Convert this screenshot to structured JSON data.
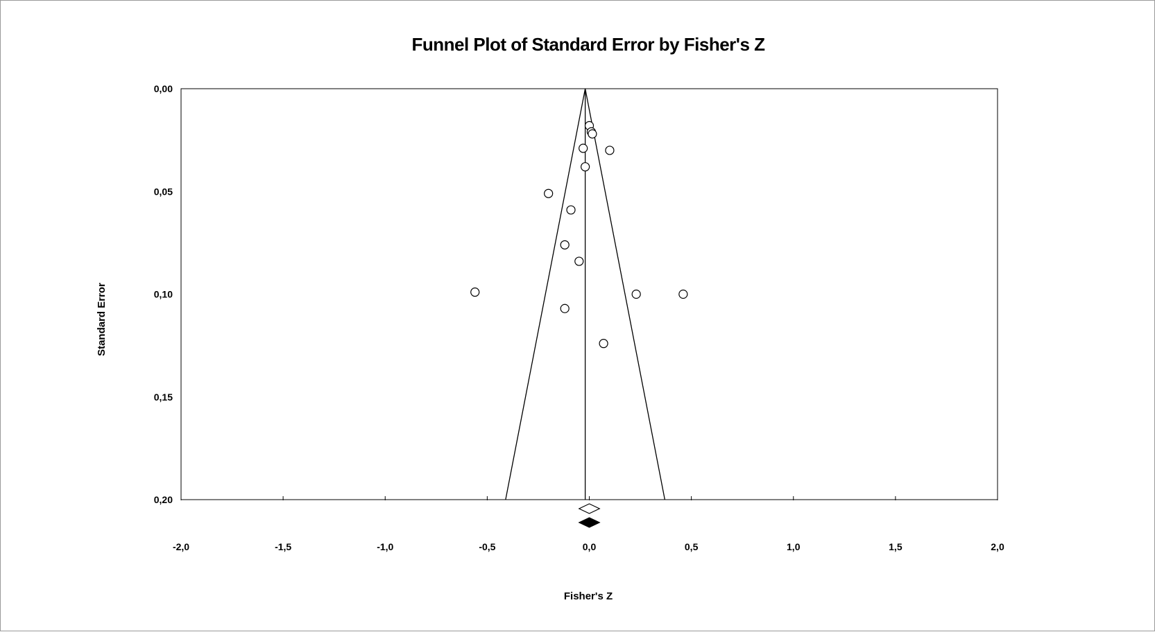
{
  "chart_data": {
    "type": "scatter",
    "title": "Funnel Plot of Standard Error by Fisher's Z",
    "xlabel": "Fisher's Z",
    "ylabel": "Standard Error",
    "xlim": [
      -2.0,
      2.0
    ],
    "ylim": [
      0.0,
      0.2
    ],
    "y_inverted": true,
    "x_ticks": [
      "-2,0",
      "-1,5",
      "-1,0",
      "-0,5",
      "0,0",
      "0,5",
      "1,0",
      "1,5",
      "2,0"
    ],
    "x_tick_values": [
      -2.0,
      -1.5,
      -1.0,
      -0.5,
      0.0,
      0.5,
      1.0,
      1.5,
      2.0
    ],
    "y_ticks": [
      "0,00",
      "0,05",
      "0,10",
      "0,15",
      "0,20"
    ],
    "y_tick_values": [
      0.0,
      0.05,
      0.1,
      0.15,
      0.2
    ],
    "grid": false,
    "funnel": {
      "center": -0.02,
      "bottom_left": -0.41,
      "bottom_right": 0.37,
      "bottom_se": 0.2
    },
    "points": [
      {
        "x": 0.0,
        "y": 0.018
      },
      {
        "x": 0.01,
        "y": 0.021
      },
      {
        "x": 0.015,
        "y": 0.022
      },
      {
        "x": -0.03,
        "y": 0.029
      },
      {
        "x": 0.1,
        "y": 0.03
      },
      {
        "x": -0.02,
        "y": 0.038
      },
      {
        "x": -0.2,
        "y": 0.051
      },
      {
        "x": -0.09,
        "y": 0.059
      },
      {
        "x": -0.12,
        "y": 0.076
      },
      {
        "x": -0.05,
        "y": 0.084
      },
      {
        "x": -0.56,
        "y": 0.099
      },
      {
        "x": 0.23,
        "y": 0.1
      },
      {
        "x": 0.46,
        "y": 0.1
      },
      {
        "x": -0.12,
        "y": 0.107
      },
      {
        "x": 0.07,
        "y": 0.124
      }
    ],
    "summary_diamonds": [
      {
        "center": 0.0,
        "half_width": 0.05,
        "style": "open"
      },
      {
        "center": 0.0,
        "half_width": 0.05,
        "style": "filled"
      }
    ],
    "colors": {
      "line": "#000000",
      "marker_fill": "#ffffff",
      "background": "#ffffff"
    }
  }
}
